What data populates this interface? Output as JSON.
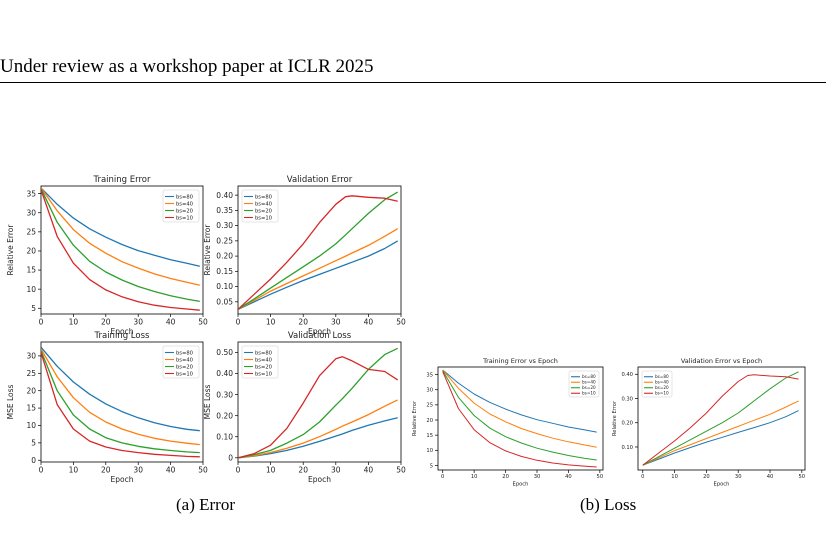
{
  "page": {
    "header": "Under review as a workshop paper at ICLR 2025",
    "captions": [
      "(a) Error",
      "(b) Loss"
    ]
  },
  "colors": {
    "bs80": "#1f77b4",
    "bs40": "#ff7f0e",
    "bs20": "#2ca02c",
    "bs10": "#d62728"
  },
  "chart_data": [
    {
      "type": "line",
      "title": "Training Error",
      "xlabel": "Epoch",
      "ylabel": "Relative Error",
      "xlim": [
        0,
        50
      ],
      "ylim": [
        3.5,
        37
      ],
      "xticks": [
        0,
        10,
        20,
        30,
        40,
        50
      ],
      "yticks": [
        5,
        10,
        15,
        20,
        25,
        30,
        35
      ],
      "legend": "top-right",
      "x": [
        0,
        5,
        10,
        15,
        20,
        25,
        30,
        35,
        40,
        45,
        49
      ],
      "series": [
        {
          "name": "bs=80",
          "color": "#1f77b4",
          "values": [
            36.5,
            32.2,
            28.6,
            25.8,
            23.6,
            21.7,
            20.1,
            18.9,
            17.7,
            16.8,
            16.0
          ]
        },
        {
          "name": "bs=40",
          "color": "#ff7f0e",
          "values": [
            36.5,
            30.5,
            25.6,
            22.0,
            19.4,
            17.2,
            15.5,
            14.0,
            12.8,
            11.8,
            11.0
          ]
        },
        {
          "name": "bs=20",
          "color": "#2ca02c",
          "values": [
            36.3,
            27.5,
            21.5,
            17.3,
            14.5,
            12.4,
            10.7,
            9.4,
            8.3,
            7.4,
            6.8
          ]
        },
        {
          "name": "bs=10",
          "color": "#d62728",
          "values": [
            36.0,
            23.8,
            16.8,
            12.5,
            9.8,
            8.0,
            6.7,
            5.8,
            5.2,
            4.8,
            4.5
          ]
        }
      ]
    },
    {
      "type": "line",
      "title": "Validation Error",
      "xlabel": "Epoch",
      "ylabel": "Relative Error",
      "xlim": [
        0,
        50
      ],
      "ylim": [
        0.01,
        0.43
      ],
      "xticks": [
        0,
        10,
        20,
        30,
        40,
        50
      ],
      "yticks": [
        0.05,
        0.1,
        0.15,
        0.2,
        0.25,
        0.3,
        0.35,
        0.4
      ],
      "legend": "top-left",
      "x": [
        0,
        5,
        10,
        15,
        20,
        25,
        30,
        33,
        35,
        40,
        45,
        49
      ],
      "series": [
        {
          "name": "bs=80",
          "color": "#1f77b4",
          "values": [
            0.025,
            0.05,
            0.075,
            0.098,
            0.12,
            0.14,
            0.16,
            0.172,
            0.18,
            0.2,
            0.225,
            0.25
          ]
        },
        {
          "name": "bs=40",
          "color": "#ff7f0e",
          "values": [
            0.025,
            0.055,
            0.085,
            0.11,
            0.135,
            0.16,
            0.185,
            0.2,
            0.21,
            0.235,
            0.265,
            0.29
          ]
        },
        {
          "name": "bs=20",
          "color": "#2ca02c",
          "values": [
            0.025,
            0.06,
            0.095,
            0.13,
            0.165,
            0.2,
            0.24,
            0.27,
            0.29,
            0.34,
            0.385,
            0.41
          ]
        },
        {
          "name": "bs=10",
          "color": "#d62728",
          "values": [
            0.025,
            0.075,
            0.125,
            0.18,
            0.24,
            0.31,
            0.37,
            0.395,
            0.398,
            0.393,
            0.39,
            0.38
          ]
        }
      ]
    },
    {
      "type": "line",
      "title": "Training Loss",
      "xlabel": "Epoch",
      "ylabel": "MSE Loss",
      "xlim": [
        0,
        50
      ],
      "ylim": [
        -0.5,
        34
      ],
      "xticks": [
        0,
        10,
        20,
        30,
        40,
        50
      ],
      "yticks": [
        0,
        5,
        10,
        15,
        20,
        25,
        30
      ],
      "legend": "top-right",
      "x": [
        0,
        5,
        10,
        15,
        20,
        25,
        30,
        35,
        40,
        45,
        49
      ],
      "series": [
        {
          "name": "bs=80",
          "color": "#1f77b4",
          "values": [
            32.5,
            27.0,
            22.5,
            19.0,
            16.2,
            14.0,
            12.2,
            10.8,
            9.7,
            8.9,
            8.5
          ]
        },
        {
          "name": "bs=40",
          "color": "#ff7f0e",
          "values": [
            32.0,
            24.0,
            18.0,
            13.8,
            11.0,
            9.0,
            7.5,
            6.3,
            5.5,
            4.9,
            4.5
          ]
        },
        {
          "name": "bs=20",
          "color": "#2ca02c",
          "values": [
            31.5,
            20.0,
            13.0,
            9.0,
            6.5,
            5.0,
            4.0,
            3.3,
            2.8,
            2.4,
            2.2
          ]
        },
        {
          "name": "bs=10",
          "color": "#d62728",
          "values": [
            31.0,
            16.0,
            9.0,
            5.5,
            3.8,
            2.8,
            2.2,
            1.7,
            1.4,
            1.1,
            1.0
          ]
        }
      ]
    },
    {
      "type": "line",
      "title": "Validation Loss",
      "xlabel": "Epoch",
      "ylabel": "MSE Loss",
      "xlim": [
        0,
        50
      ],
      "ylim": [
        -0.02,
        0.55
      ],
      "xticks": [
        0,
        10,
        20,
        30,
        40,
        50
      ],
      "yticks": [
        0.0,
        0.1,
        0.2,
        0.3,
        0.4,
        0.5
      ],
      "legend": "top-left",
      "x": [
        0,
        5,
        10,
        15,
        20,
        25,
        30,
        32,
        35,
        40,
        45,
        49
      ],
      "series": [
        {
          "name": "bs=80",
          "color": "#1f77b4",
          "values": [
            0.0,
            0.008,
            0.02,
            0.035,
            0.055,
            0.078,
            0.103,
            0.113,
            0.13,
            0.155,
            0.175,
            0.19
          ]
        },
        {
          "name": "bs=40",
          "color": "#ff7f0e",
          "values": [
            0.0,
            0.01,
            0.025,
            0.045,
            0.07,
            0.1,
            0.135,
            0.15,
            0.17,
            0.205,
            0.245,
            0.275
          ]
        },
        {
          "name": "bs=20",
          "color": "#2ca02c",
          "values": [
            0.0,
            0.015,
            0.035,
            0.07,
            0.11,
            0.17,
            0.25,
            0.28,
            0.33,
            0.42,
            0.49,
            0.52
          ]
        },
        {
          "name": "bs=10",
          "color": "#d62728",
          "values": [
            0.0,
            0.02,
            0.06,
            0.14,
            0.26,
            0.39,
            0.47,
            0.48,
            0.46,
            0.42,
            0.41,
            0.37
          ]
        }
      ]
    },
    {
      "type": "line",
      "title": "Training Error vs Epoch",
      "xlabel": "Epoch",
      "ylabel": "Relative Error",
      "xlim": [
        -1.5,
        51
      ],
      "ylim": [
        3.5,
        37.5
      ],
      "xticks": [
        0,
        10,
        20,
        30,
        40,
        50
      ],
      "yticks": [
        5,
        10,
        15,
        20,
        25,
        30,
        35
      ],
      "legend": "top-right",
      "x": [
        0,
        5,
        10,
        15,
        20,
        25,
        30,
        35,
        40,
        45,
        49
      ],
      "series": [
        {
          "name": "bs=80",
          "color": "#1f77b4",
          "values": [
            36.5,
            32.2,
            28.6,
            25.8,
            23.6,
            21.7,
            20.1,
            18.9,
            17.7,
            16.8,
            16.0
          ]
        },
        {
          "name": "bs=40",
          "color": "#ff7f0e",
          "values": [
            36.5,
            30.5,
            25.6,
            22.0,
            19.4,
            17.2,
            15.5,
            14.0,
            12.8,
            11.8,
            11.0
          ]
        },
        {
          "name": "bs=20",
          "color": "#2ca02c",
          "values": [
            36.3,
            27.5,
            21.5,
            17.3,
            14.5,
            12.4,
            10.7,
            9.4,
            8.3,
            7.4,
            6.8
          ]
        },
        {
          "name": "bs=10",
          "color": "#d62728",
          "values": [
            36.0,
            23.8,
            16.8,
            12.5,
            9.8,
            8.0,
            6.7,
            5.8,
            5.2,
            4.8,
            4.5
          ]
        }
      ]
    },
    {
      "type": "line",
      "title": "Validation Error vs Epoch",
      "xlabel": "Epoch",
      "ylabel": "Relative Error",
      "xlim": [
        -1.5,
        51
      ],
      "ylim": [
        0.005,
        0.43
      ],
      "xticks": [
        0,
        10,
        20,
        30,
        40,
        50
      ],
      "yticks": [
        0.1,
        0.2,
        0.3,
        0.4
      ],
      "legend": "top-left",
      "x": [
        0,
        5,
        10,
        15,
        20,
        25,
        30,
        33,
        35,
        40,
        45,
        49
      ],
      "series": [
        {
          "name": "bs=80",
          "color": "#1f77b4",
          "values": [
            0.025,
            0.05,
            0.075,
            0.098,
            0.12,
            0.14,
            0.16,
            0.172,
            0.18,
            0.2,
            0.225,
            0.25
          ]
        },
        {
          "name": "bs=40",
          "color": "#ff7f0e",
          "values": [
            0.025,
            0.055,
            0.085,
            0.11,
            0.135,
            0.16,
            0.185,
            0.2,
            0.21,
            0.235,
            0.265,
            0.29
          ]
        },
        {
          "name": "bs=20",
          "color": "#2ca02c",
          "values": [
            0.025,
            0.06,
            0.095,
            0.13,
            0.165,
            0.2,
            0.24,
            0.27,
            0.29,
            0.34,
            0.385,
            0.41
          ]
        },
        {
          "name": "bs=10",
          "color": "#d62728",
          "values": [
            0.025,
            0.075,
            0.125,
            0.18,
            0.24,
            0.31,
            0.37,
            0.395,
            0.398,
            0.393,
            0.39,
            0.38
          ]
        }
      ]
    }
  ]
}
